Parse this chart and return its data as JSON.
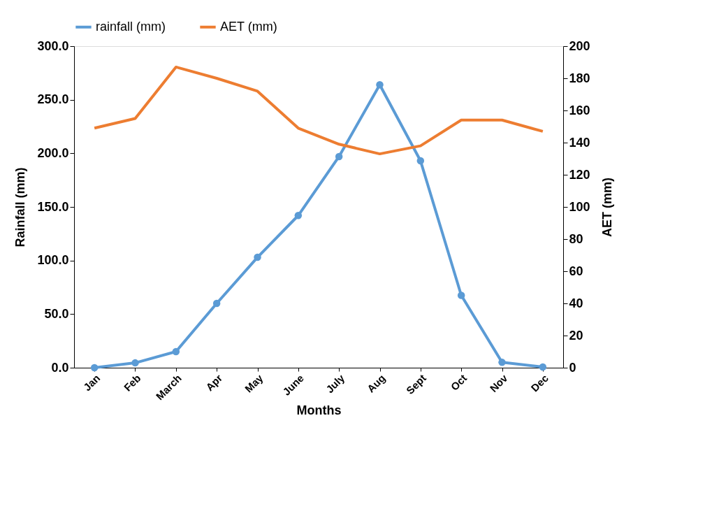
{
  "chart_data": {
    "type": "line",
    "xlabel": "Months",
    "ylabel": "Rainfall (mm)",
    "y2label": "AET (mm)",
    "categories": [
      "Jan",
      "Feb",
      "March",
      "Apr",
      "May",
      "June",
      "July",
      "Aug",
      "Sept",
      "Oct",
      "Nov",
      "Dec"
    ],
    "series": [
      {
        "name": "rainfall (mm)",
        "color": "#5b9bd5",
        "marker": "circle",
        "values": [
          0,
          4.5,
          15,
          60,
          103,
          142,
          197,
          264,
          193,
          67.5,
          5,
          0.7
        ]
      },
      {
        "name": "AET (mm)",
        "color": "#ed7d31",
        "axis": "y2",
        "marker": "none",
        "values": [
          149,
          155,
          187,
          180,
          172,
          149,
          139,
          133,
          138,
          154,
          154,
          147
        ]
      }
    ],
    "ylim": [
      0,
      300
    ],
    "yticks": [
      {
        "value": 0,
        "label": "0.0"
      },
      {
        "value": 50,
        "label": "50.0"
      },
      {
        "value": 100,
        "label": "100.0"
      },
      {
        "value": 150,
        "label": "150.0"
      },
      {
        "value": 200,
        "label": "200.0"
      },
      {
        "value": 250,
        "label": "250.0"
      },
      {
        "value": 300,
        "label": "300.0"
      }
    ],
    "y2lim": [
      0,
      200
    ],
    "y2ticks": [
      0,
      20,
      40,
      60,
      80,
      100,
      120,
      140,
      160,
      180,
      200
    ],
    "grid": false,
    "legend": "top",
    "line_style": "solid"
  }
}
